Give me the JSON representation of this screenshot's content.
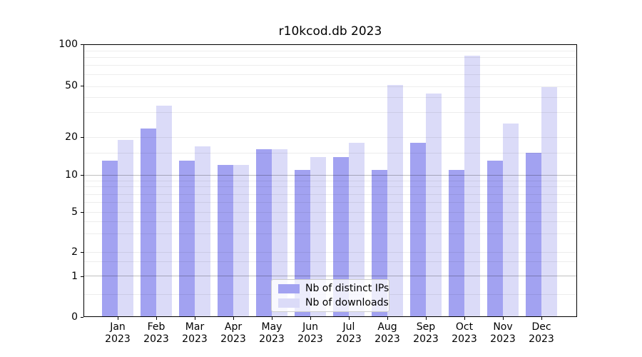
{
  "title": "r10kcod.db 2023",
  "legend": {
    "items": [
      {
        "label": "Nb of distinct IPs",
        "color": "#a2a2f1"
      },
      {
        "label": "Nb of downloads",
        "color": "#dbdbf8"
      }
    ]
  },
  "y_axis": {
    "tick_labels": [
      "100",
      "50",
      "20",
      "10",
      "5",
      "2",
      "1",
      "0"
    ]
  },
  "x_axis": {
    "tick_labels": [
      {
        "month": "Jan",
        "year": "2023"
      },
      {
        "month": "Feb",
        "year": "2023"
      },
      {
        "month": "Mar",
        "year": "2023"
      },
      {
        "month": "Apr",
        "year": "2023"
      },
      {
        "month": "May",
        "year": "2023"
      },
      {
        "month": "Jun",
        "year": "2023"
      },
      {
        "month": "Jul",
        "year": "2023"
      },
      {
        "month": "Aug",
        "year": "2023"
      },
      {
        "month": "Sep",
        "year": "2023"
      },
      {
        "month": "Oct",
        "year": "2023"
      },
      {
        "month": "Nov",
        "year": "2023"
      },
      {
        "month": "Dec",
        "year": "2023"
      }
    ]
  },
  "chart_data": {
    "type": "bar",
    "title": "r10kcod.db 2023",
    "categories": [
      "Jan 2023",
      "Feb 2023",
      "Mar 2023",
      "Apr 2023",
      "May 2023",
      "Jun 2023",
      "Jul 2023",
      "Aug 2023",
      "Sep 2023",
      "Oct 2023",
      "Nov 2023",
      "Dec 2023"
    ],
    "series": [
      {
        "name": "Nb of distinct IPs",
        "color": "#a2a2f1",
        "values": [
          13,
          23,
          13,
          12,
          16,
          11,
          14,
          11,
          18,
          11,
          13,
          15
        ]
      },
      {
        "name": "Nb of downloads",
        "color": "#dbdbf8",
        "values": [
          19,
          34,
          17,
          12,
          16,
          14,
          18,
          51,
          43,
          82,
          25,
          49
        ]
      }
    ],
    "xlabel": "",
    "ylabel": "",
    "yscale": "asinh",
    "yticks": [
      0,
      1,
      2,
      5,
      10,
      20,
      50,
      100
    ],
    "ylim": [
      0,
      100
    ],
    "grid": "both",
    "legend_position": "lower center"
  }
}
